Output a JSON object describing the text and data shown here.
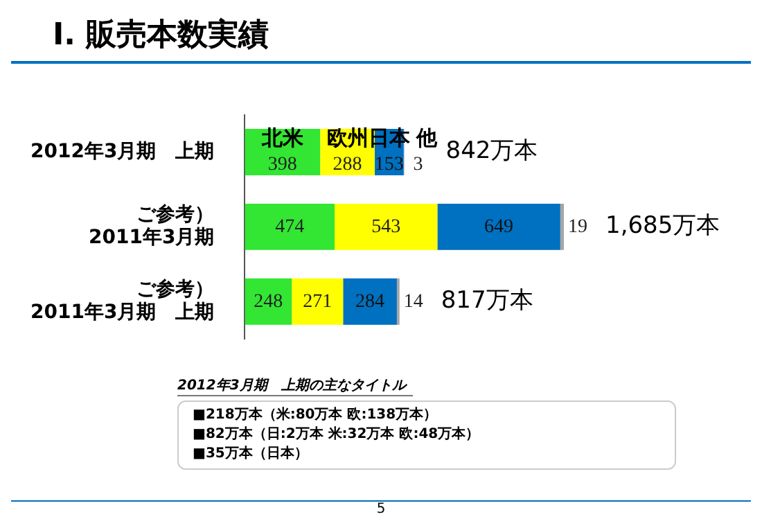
{
  "chart_data": {
    "type": "bar",
    "title": "Ⅰ. 販売本数実績",
    "orientation": "horizontal",
    "stacked": true,
    "data_labels": true,
    "tick_labels": "y",
    "legend": false,
    "categories": [
      "2012年3月期　上期",
      "ご参考）\n2011年3月期",
      "ご参考）\n2011年3月期　上期"
    ],
    "series": [
      {
        "name": "北米",
        "color": "#33e633",
        "values": [
          398,
          474,
          248
        ]
      },
      {
        "name": "欧州",
        "color": "#ffff00",
        "values": [
          288,
          543,
          271
        ]
      },
      {
        "name": "日本",
        "color": "#0070c0",
        "values": [
          153,
          649,
          284
        ]
      },
      {
        "name": "他",
        "color": "#a6a6a6",
        "values": [
          3,
          19,
          14
        ]
      }
    ],
    "totals": [
      "842万本",
      "1,685万本",
      "817万本"
    ],
    "annotations": [
      "2012年3月期　上期の主なタイトル",
      "■218万本（米:80万本 欧:138万本）",
      "■82万本（日:2万本 米:32万本 欧:48万本）",
      "■35万本（日本）",
      "5"
    ]
  }
}
